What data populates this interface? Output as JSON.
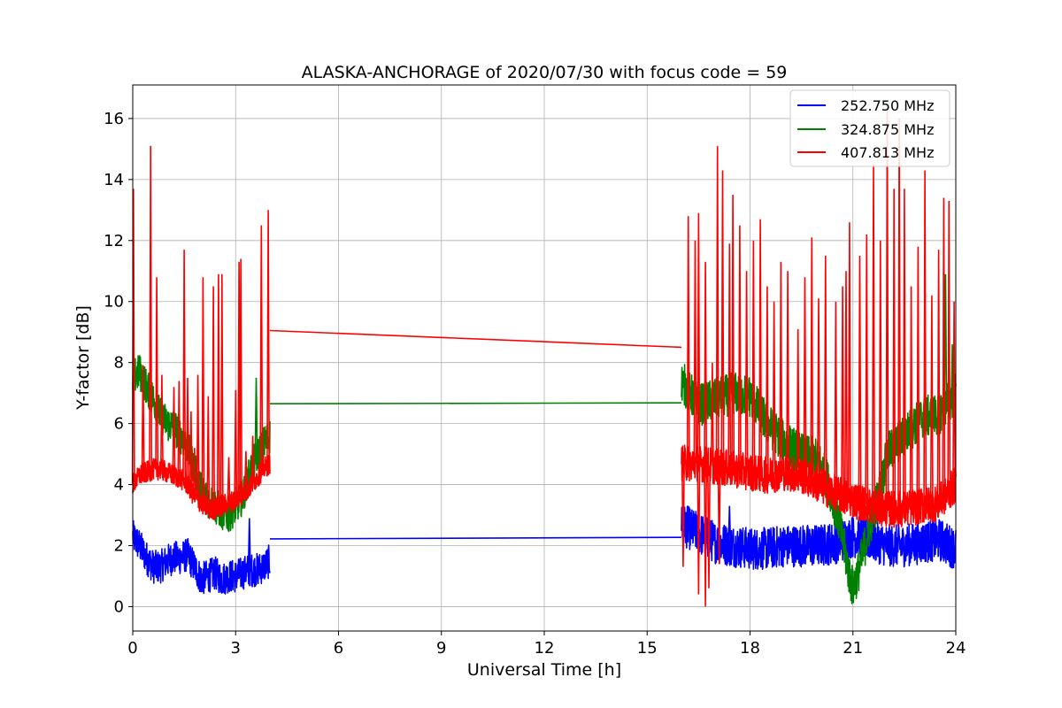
{
  "chart_data": {
    "type": "line",
    "title": "ALASKA-ANCHORAGE of 2020/07/30 with focus code = 59",
    "xlabel": "Universal Time [h]",
    "ylabel": "Y-factor [dB]",
    "xlim": [
      0,
      24
    ],
    "ylim": [
      -0.8,
      17.1
    ],
    "xticks": [
      0,
      3,
      6,
      9,
      12,
      15,
      18,
      21,
      24
    ],
    "yticks": [
      0,
      2,
      4,
      6,
      8,
      10,
      12,
      14,
      16
    ],
    "grid": true,
    "legend_position": "top-right",
    "series": [
      {
        "name": "252.750 MHz",
        "color": "#0000ff",
        "segments": [
          {
            "x": [
              0,
              0.2,
              0.4,
              0.6,
              0.8,
              1.0,
              1.2,
              1.4,
              1.6,
              1.8,
              2.0,
              2.2,
              2.4,
              2.6,
              2.8,
              3.0,
              3.2,
              3.4,
              3.6,
              3.8,
              4.0
            ],
            "mean": [
              2.3,
              2.0,
              1.6,
              1.3,
              1.3,
              1.5,
              1.6,
              1.6,
              1.7,
              1.3,
              0.9,
              1.0,
              1.1,
              0.9,
              1.0,
              1.0,
              1.1,
              1.2,
              1.2,
              1.3,
              1.5
            ],
            "spread": 0.55
          },
          {
            "x": [
              4.0,
              16.0
            ],
            "mean": [
              2.22,
              2.27
            ],
            "spread": 0
          },
          {
            "x": [
              16.0,
              16.5,
              17.0,
              17.5,
              18.0,
              18.5,
              19.0,
              19.5,
              20.0,
              20.5,
              21.0,
              21.5,
              22.0,
              22.5,
              23.0,
              23.5,
              24.0
            ],
            "mean": [
              2.7,
              2.4,
              2.1,
              2.0,
              1.9,
              1.9,
              2.0,
              2.0,
              2.0,
              2.1,
              2.3,
              2.2,
              2.0,
              2.0,
              2.1,
              2.2,
              1.9
            ],
            "spread": 0.7
          }
        ],
        "spikes": [
          [
            3.4,
            2.9
          ],
          [
            16.2,
            3.3
          ],
          [
            17.4,
            3.3
          ]
        ]
      },
      {
        "name": "324.875 MHz",
        "color": "#008000",
        "segments": [
          {
            "x": [
              0,
              0.2,
              0.4,
              0.6,
              0.8,
              1.0,
              1.2,
              1.4,
              1.6,
              1.8,
              2.0,
              2.2,
              2.4,
              2.6,
              2.8,
              3.0,
              3.2,
              3.4,
              3.6,
              3.8,
              4.0
            ],
            "mean": [
              7.5,
              7.7,
              7.2,
              6.8,
              6.3,
              6.0,
              5.9,
              5.6,
              5.2,
              4.5,
              3.8,
              3.5,
              3.3,
              3.1,
              3.0,
              3.3,
              3.6,
              4.3,
              4.9,
              5.3,
              5.6
            ],
            "spread": 0.6
          },
          {
            "x": [
              4.0,
              16.0
            ],
            "mean": [
              6.65,
              6.68
            ],
            "spread": 0
          },
          {
            "x": [
              16.0,
              16.5,
              17.0,
              17.5,
              18.0,
              18.5,
              19.0,
              19.5,
              20.0,
              20.3,
              20.6,
              20.9,
              21.0,
              21.2,
              21.5,
              21.8,
              22.0,
              22.5,
              23.0,
              23.5,
              24.0
            ],
            "mean": [
              7.4,
              6.6,
              6.8,
              7.0,
              6.9,
              6.0,
              5.4,
              5.0,
              4.8,
              4.0,
              2.8,
              1.0,
              0.6,
              1.3,
              2.7,
              3.8,
              5.0,
              5.6,
              6.2,
              6.3,
              7.0
            ],
            "spread": 0.7
          }
        ],
        "spikes": [
          [
            3.6,
            7.5
          ],
          [
            23.7,
            10.9
          ],
          [
            23.9,
            8.6
          ]
        ]
      },
      {
        "name": "407.813 MHz",
        "color": "#ff0000",
        "segments": [
          {
            "x": [
              0,
              0.2,
              0.4,
              0.6,
              0.8,
              1.0,
              1.2,
              1.4,
              1.6,
              1.8,
              2.0,
              2.2,
              2.4,
              2.6,
              2.8,
              3.0,
              3.2,
              3.4,
              3.6,
              3.8,
              4.0
            ],
            "mean": [
              4.0,
              4.3,
              4.4,
              4.5,
              4.5,
              4.4,
              4.3,
              4.2,
              4.0,
              3.6,
              3.4,
              3.2,
              3.2,
              3.3,
              3.4,
              3.5,
              3.7,
              3.9,
              4.2,
              4.5,
              4.7
            ],
            "spread": 0.35
          },
          {
            "x": [
              4.0,
              16.0
            ],
            "mean": [
              9.05,
              8.5
            ],
            "spread": 0
          },
          {
            "x": [
              16.0,
              16.5,
              17.0,
              17.5,
              18.0,
              18.5,
              19.0,
              19.5,
              20.0,
              20.5,
              21.0,
              21.5,
              22.0,
              22.5,
              23.0,
              23.5,
              24.0
            ],
            "mean": [
              4.7,
              4.7,
              4.6,
              4.5,
              4.4,
              4.3,
              4.4,
              4.3,
              4.0,
              3.7,
              3.5,
              3.3,
              3.2,
              3.2,
              3.3,
              3.4,
              4.0
            ],
            "spread": 0.6
          }
        ],
        "spikes": [
          [
            0.02,
            13.7
          ],
          [
            0.3,
            7.9
          ],
          [
            0.52,
            15.1
          ],
          [
            0.7,
            10.8
          ],
          [
            0.85,
            7.6
          ],
          [
            1.2,
            7.2
          ],
          [
            1.35,
            7.4
          ],
          [
            1.5,
            11.7
          ],
          [
            1.6,
            7.5
          ],
          [
            1.7,
            6.4
          ],
          [
            1.8,
            5.2
          ],
          [
            1.9,
            7.6
          ],
          [
            2.05,
            10.8
          ],
          [
            2.2,
            6.9
          ],
          [
            2.35,
            10.5
          ],
          [
            2.5,
            10.9
          ],
          [
            2.6,
            10.9
          ],
          [
            2.8,
            4.9
          ],
          [
            3.0,
            7.1
          ],
          [
            3.1,
            11.3
          ],
          [
            3.15,
            11.4
          ],
          [
            3.3,
            5.1
          ],
          [
            3.5,
            5.6
          ],
          [
            3.75,
            12.5
          ],
          [
            3.95,
            13.0
          ],
          [
            16.2,
            12.8
          ],
          [
            16.4,
            12.0
          ],
          [
            16.5,
            12.9
          ],
          [
            16.7,
            11.3
          ],
          [
            16.9,
            8.0
          ],
          [
            17.05,
            15.1
          ],
          [
            17.2,
            14.3
          ],
          [
            17.4,
            11.9
          ],
          [
            17.5,
            13.5
          ],
          [
            17.7,
            12.5
          ],
          [
            17.9,
            11.0
          ],
          [
            18.1,
            12.0
          ],
          [
            18.3,
            12.7
          ],
          [
            18.5,
            10.5
          ],
          [
            18.7,
            10.0
          ],
          [
            18.9,
            11.3
          ],
          [
            19.1,
            11.0
          ],
          [
            19.4,
            9.1
          ],
          [
            19.6,
            10.8
          ],
          [
            19.8,
            12.1
          ],
          [
            20.0,
            10.1
          ],
          [
            20.2,
            11.5
          ],
          [
            20.5,
            10.0
          ],
          [
            20.7,
            10.5
          ],
          [
            20.8,
            11.0
          ],
          [
            20.9,
            12.6
          ],
          [
            21.2,
            11.5
          ],
          [
            21.4,
            12.2
          ],
          [
            21.6,
            14.5
          ],
          [
            21.8,
            12.0
          ],
          [
            22.0,
            16.3
          ],
          [
            22.2,
            13.7
          ],
          [
            22.35,
            16.0
          ],
          [
            22.5,
            13.7
          ],
          [
            22.7,
            10.5
          ],
          [
            22.9,
            11.8
          ],
          [
            23.1,
            14.3
          ],
          [
            23.3,
            10.2
          ],
          [
            23.5,
            11.7
          ],
          [
            23.65,
            13.4
          ],
          [
            23.8,
            13.3
          ],
          [
            23.95,
            10.0
          ]
        ],
        "dips": [
          [
            16.05,
            1.3
          ],
          [
            16.5,
            0.4
          ],
          [
            16.7,
            0.0
          ],
          [
            16.8,
            0.6
          ],
          [
            17.1,
            1.4
          ]
        ]
      }
    ]
  }
}
